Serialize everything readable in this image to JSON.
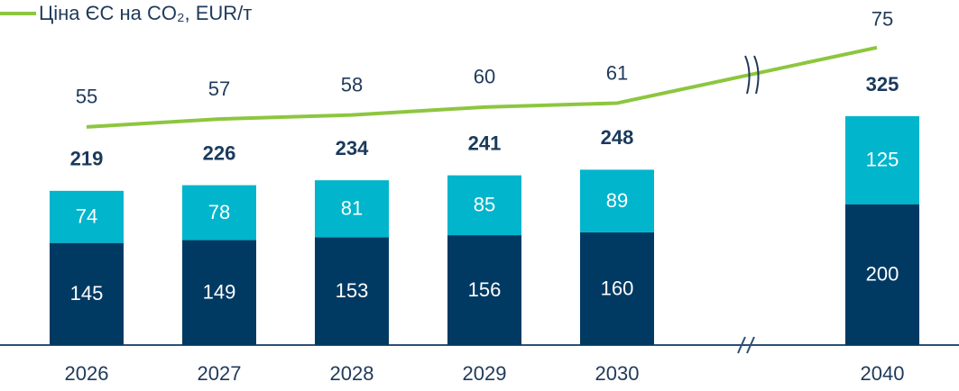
{
  "chart_data": {
    "type": "bar",
    "legend": "Ціна ЄС на CO₂, EUR/т",
    "categories": [
      "2026",
      "2027",
      "2028",
      "2029",
      "2030",
      "2040"
    ],
    "series": [
      {
        "color": "#003a63",
        "values": [
          145,
          149,
          153,
          156,
          160,
          200
        ]
      },
      {
        "color": "#00b5cc",
        "values": [
          74,
          78,
          81,
          85,
          89,
          125
        ]
      },
      {
        "name": "Ціна ЄС на CO₂, EUR/т",
        "type": "line",
        "axis": "y2",
        "color": "#8dc63f",
        "values": [
          55,
          57,
          58,
          60,
          61,
          75
        ]
      }
    ],
    "totals": [
      219,
      226,
      234,
      241,
      248,
      325
    ],
    "stacked": true,
    "ylim": [
      0,
      490
    ],
    "y2lim": [
      0,
      87
    ]
  }
}
